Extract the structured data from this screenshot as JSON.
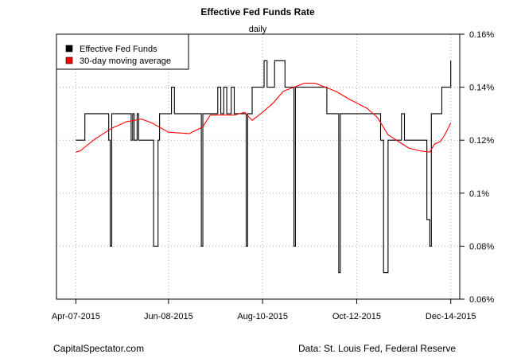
{
  "chart_data": {
    "type": "line",
    "title": "Effective Fed Funds Rate",
    "subtitle": "daily",
    "x_tick_labels": [
      "Apr-07-2015",
      "Jun-08-2015",
      "Aug-10-2015",
      "Oct-12-2015",
      "Dec-14-2015"
    ],
    "x_ticks": [
      "2015-04-07",
      "2015-06-08",
      "2015-08-10",
      "2015-10-12",
      "2015-12-14"
    ],
    "y_tick_labels": [
      "0.06%",
      "0.08%",
      "0.1%",
      "0.12%",
      "0.14%",
      "0.16%"
    ],
    "y_ticks": [
      0.06,
      0.08,
      0.1,
      0.12,
      0.14,
      0.16
    ],
    "xlim": [
      "2015-03-25",
      "2015-12-20"
    ],
    "ylim": [
      0.06,
      0.16
    ],
    "y_axis_side": "right",
    "grid": true,
    "legend": {
      "placement": "top-left"
    },
    "series": [
      {
        "name": "Effective Fed Funds",
        "color": "#000000",
        "points": [
          [
            "2015-04-07",
            0.12
          ],
          [
            "2015-04-10",
            0.12
          ],
          [
            "2015-04-13",
            0.13
          ],
          [
            "2015-04-28",
            0.13
          ],
          [
            "2015-04-29",
            0.12
          ],
          [
            "2015-04-30",
            0.08
          ],
          [
            "2015-05-01",
            0.13
          ],
          [
            "2015-05-13",
            0.13
          ],
          [
            "2015-05-14",
            0.12
          ],
          [
            "2015-05-15",
            0.13
          ],
          [
            "2015-05-16",
            0.12
          ],
          [
            "2015-05-18",
            0.13
          ],
          [
            "2015-05-19",
            0.12
          ],
          [
            "2015-05-28",
            0.12
          ],
          [
            "2015-05-29",
            0.08
          ],
          [
            "2015-06-01",
            0.12
          ],
          [
            "2015-06-02",
            0.13
          ],
          [
            "2015-06-09",
            0.13
          ],
          [
            "2015-06-10",
            0.14
          ],
          [
            "2015-06-12",
            0.13
          ],
          [
            "2015-06-29",
            0.13
          ],
          [
            "2015-06-30",
            0.08
          ],
          [
            "2015-07-01",
            0.13
          ],
          [
            "2015-07-10",
            0.13
          ],
          [
            "2015-07-11",
            0.14
          ],
          [
            "2015-07-13",
            0.13
          ],
          [
            "2015-07-15",
            0.14
          ],
          [
            "2015-07-17",
            0.13
          ],
          [
            "2015-07-20",
            0.14
          ],
          [
            "2015-07-22",
            0.13
          ],
          [
            "2015-07-29",
            0.13
          ],
          [
            "2015-07-30",
            0.08
          ],
          [
            "2015-07-31",
            0.13
          ],
          [
            "2015-08-03",
            0.14
          ],
          [
            "2015-08-10",
            0.14
          ],
          [
            "2015-08-11",
            0.15
          ],
          [
            "2015-08-13",
            0.14
          ],
          [
            "2015-08-17",
            0.14
          ],
          [
            "2015-08-18",
            0.15
          ],
          [
            "2015-08-24",
            0.15
          ],
          [
            "2015-08-25",
            0.14
          ],
          [
            "2015-08-28",
            0.14
          ],
          [
            "2015-08-31",
            0.08
          ],
          [
            "2015-09-01",
            0.14
          ],
          [
            "2015-09-21",
            0.14
          ],
          [
            "2015-09-22",
            0.13
          ],
          [
            "2015-09-29",
            0.13
          ],
          [
            "2015-09-30",
            0.07
          ],
          [
            "2015-10-01",
            0.13
          ],
          [
            "2015-10-27",
            0.13
          ],
          [
            "2015-10-28",
            0.12
          ],
          [
            "2015-10-29",
            0.12
          ],
          [
            "2015-10-30",
            0.07
          ],
          [
            "2015-11-02",
            0.12
          ],
          [
            "2015-11-10",
            0.12
          ],
          [
            "2015-11-11",
            0.13
          ],
          [
            "2015-11-13",
            0.12
          ],
          [
            "2015-11-27",
            0.12
          ],
          [
            "2015-11-28",
            0.09
          ],
          [
            "2015-11-30",
            0.08
          ],
          [
            "2015-12-01",
            0.13
          ],
          [
            "2015-12-07",
            0.13
          ],
          [
            "2015-12-08",
            0.14
          ],
          [
            "2015-12-11",
            0.14
          ],
          [
            "2015-12-14",
            0.15
          ]
        ]
      },
      {
        "name": "30-day moving average",
        "color": "#ff0000",
        "points": [
          [
            "2015-04-07",
            0.1155
          ],
          [
            "2015-04-10",
            0.116
          ],
          [
            "2015-04-20",
            0.1205
          ],
          [
            "2015-05-01",
            0.1245
          ],
          [
            "2015-05-11",
            0.127
          ],
          [
            "2015-05-21",
            0.128
          ],
          [
            "2015-05-28",
            0.1265
          ],
          [
            "2015-06-08",
            0.123
          ],
          [
            "2015-06-22",
            0.1225
          ],
          [
            "2015-07-01",
            0.125
          ],
          [
            "2015-07-06",
            0.1295
          ],
          [
            "2015-07-22",
            0.1295
          ],
          [
            "2015-07-29",
            0.1305
          ],
          [
            "2015-08-03",
            0.1275
          ],
          [
            "2015-08-10",
            0.1305
          ],
          [
            "2015-08-17",
            0.134
          ],
          [
            "2015-08-24",
            0.1385
          ],
          [
            "2015-08-31",
            0.14
          ],
          [
            "2015-09-07",
            0.1415
          ],
          [
            "2015-09-14",
            0.1415
          ],
          [
            "2015-09-21",
            0.14
          ],
          [
            "2015-09-28",
            0.1385
          ],
          [
            "2015-10-07",
            0.1355
          ],
          [
            "2015-10-19",
            0.132
          ],
          [
            "2015-10-26",
            0.1285
          ],
          [
            "2015-11-02",
            0.122
          ],
          [
            "2015-11-09",
            0.1195
          ],
          [
            "2015-11-16",
            0.117
          ],
          [
            "2015-11-23",
            0.116
          ],
          [
            "2015-11-30",
            0.1155
          ],
          [
            "2015-12-03",
            0.1185
          ],
          [
            "2015-12-07",
            0.1195
          ],
          [
            "2015-12-10",
            0.122
          ],
          [
            "2015-12-14",
            0.1265
          ]
        ]
      }
    ]
  },
  "footer": {
    "left": "CapitalSpectator.com",
    "right": "Data: St. Louis Fed, Federal Reserve"
  }
}
